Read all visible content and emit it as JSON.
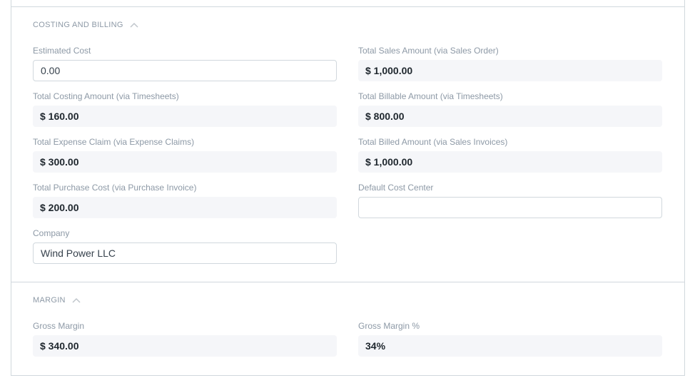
{
  "sections": [
    {
      "title": "COSTING AND BILLING",
      "collapse_icon": "chevron-up-icon"
    },
    {
      "title": "MARGIN",
      "collapse_icon": "chevron-up-icon"
    }
  ],
  "costing": {
    "estimated_cost": {
      "label": "Estimated Cost",
      "value": "0.00"
    },
    "total_sales_amount": {
      "label": "Total Sales Amount (via Sales Order)",
      "value": "$ 1,000.00"
    },
    "total_costing_amount": {
      "label": "Total Costing Amount (via Timesheets)",
      "value": "$ 160.00"
    },
    "total_billable_amount": {
      "label": "Total Billable Amount (via Timesheets)",
      "value": "$ 800.00"
    },
    "total_expense_claim": {
      "label": "Total Expense Claim (via Expense Claims)",
      "value": "$ 300.00"
    },
    "total_billed_amount": {
      "label": "Total Billed Amount (via Sales Invoices)",
      "value": "$ 1,000.00"
    },
    "total_purchase_cost": {
      "label": "Total Purchase Cost (via Purchase Invoice)",
      "value": "$ 200.00"
    },
    "default_cost_center": {
      "label": "Default Cost Center",
      "value": ""
    },
    "company": {
      "label": "Company",
      "value": "Wind Power LLC"
    }
  },
  "margin": {
    "gross_margin": {
      "label": "Gross Margin",
      "value": "$ 340.00"
    },
    "gross_margin_pct": {
      "label": "Gross Margin %",
      "value": "34%"
    }
  }
}
